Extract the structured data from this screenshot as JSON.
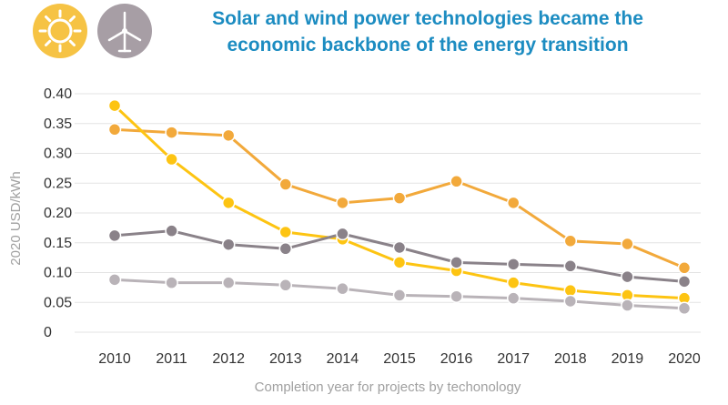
{
  "icons": [
    "sun-icon",
    "wind-turbine-icon"
  ],
  "colors": {
    "title": "#1C8CC1",
    "sun_badge": "#F6C344",
    "wind_badge": "#A79EA5"
  },
  "chart_data": {
    "type": "line",
    "title_lines": [
      "Solar and wind power technologies became the",
      "economic backbone of the energy transition"
    ],
    "xlabel": "Completion year for projects by techonology",
    "ylabel": "2020 USD/kWh",
    "x": [
      2010,
      2011,
      2012,
      2013,
      2014,
      2015,
      2016,
      2017,
      2018,
      2019,
      2020
    ],
    "yticks": [
      "0",
      "0.05",
      "0.10",
      "0.15",
      "0.20",
      "0.25",
      "0.30",
      "0.35",
      "0.40"
    ],
    "ylim": [
      0,
      0.4
    ],
    "grid": "horizontal",
    "series": [
      {
        "color": "#F2A93B",
        "values": [
          0.34,
          0.335,
          0.33,
          0.248,
          0.217,
          0.225,
          0.253,
          0.217,
          0.153,
          0.148,
          0.108
        ]
      },
      {
        "color": "#FDC412",
        "values": [
          0.38,
          0.29,
          0.217,
          0.168,
          0.156,
          0.117,
          0.103,
          0.083,
          0.07,
          0.062,
          0.057
        ]
      },
      {
        "color": "#8A8289",
        "values": [
          0.162,
          0.17,
          0.147,
          0.14,
          0.165,
          0.142,
          0.117,
          0.114,
          0.111,
          0.093,
          0.085
        ]
      },
      {
        "color": "#B9B3B8",
        "values": [
          0.088,
          0.083,
          0.083,
          0.079,
          0.073,
          0.062,
          0.06,
          0.057,
          0.052,
          0.045,
          0.04
        ]
      }
    ]
  }
}
